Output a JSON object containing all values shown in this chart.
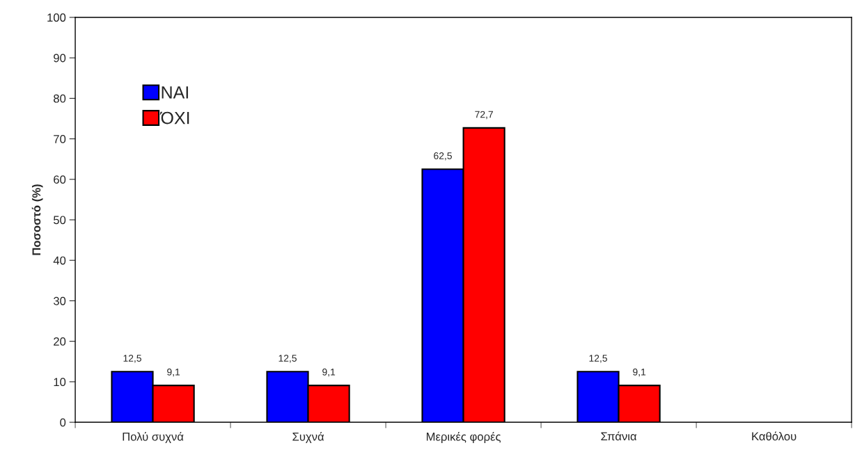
{
  "chart_data": {
    "type": "bar",
    "ylabel": "Ποσοστό (%)",
    "categories": [
      "Πολύ συχνά",
      "Συχνά",
      "Μερικές φορές",
      "Σπάνια",
      "Καθόλου"
    ],
    "series": [
      {
        "name": "ΝΑΙ",
        "color": "#0000ff",
        "values": [
          12.5,
          12.5,
          62.5,
          12.5,
          null
        ],
        "value_labels": [
          "12,5",
          "12,5",
          "62,5",
          "12,5",
          null
        ]
      },
      {
        "name": "ΌΧΙ",
        "color": "#ff0000",
        "values": [
          9.1,
          9.1,
          72.7,
          9.1,
          null
        ],
        "value_labels": [
          "9,1",
          "9,1",
          "72,7",
          "9,1",
          null
        ]
      }
    ],
    "ylim": [
      0,
      100
    ],
    "yticks": [
      0,
      10,
      20,
      30,
      40,
      50,
      60,
      70,
      80,
      90,
      100
    ],
    "grid": false,
    "legend": "top left"
  }
}
